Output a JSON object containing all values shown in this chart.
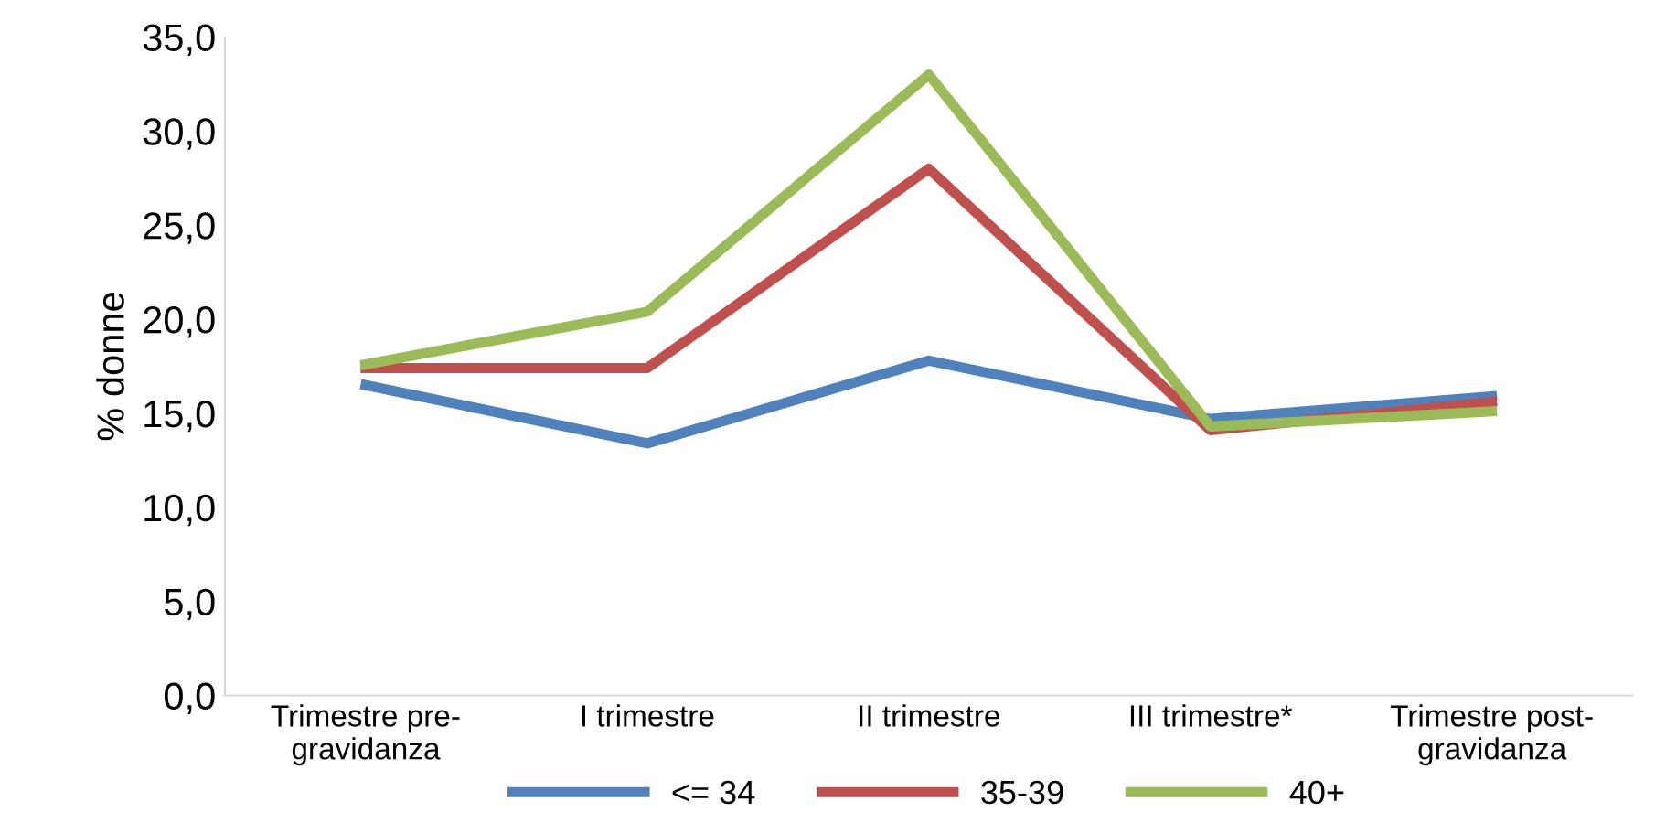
{
  "chart_data": {
    "type": "line",
    "ylabel": "% donne",
    "categories": [
      "Trimestre pre-\ngravidanza",
      "I trimestre",
      "II trimestre",
      "III trimestre*",
      "Trimestre post-\ngravidanza"
    ],
    "series": [
      {
        "name": "<= 34",
        "color": "#4f81bd",
        "values": [
          16.5,
          13.4,
          17.8,
          14.7,
          15.9
        ]
      },
      {
        "name": "35-39",
        "color": "#c0504d",
        "values": [
          17.4,
          17.4,
          28.0,
          14.1,
          15.6
        ]
      },
      {
        "name": "40+",
        "color": "#9bbb59",
        "values": [
          17.6,
          20.4,
          33.0,
          14.3,
          15.1
        ]
      }
    ],
    "ylim": [
      0,
      35
    ],
    "yticks": [
      {
        "value": 0,
        "label": "0,0"
      },
      {
        "value": 5,
        "label": "5,0"
      },
      {
        "value": 10,
        "label": "10,0"
      },
      {
        "value": 15,
        "label": "15,0"
      },
      {
        "value": 20,
        "label": "20,0"
      },
      {
        "value": 25,
        "label": "25,0"
      },
      {
        "value": 30,
        "label": "30,0"
      },
      {
        "value": 35,
        "label": "35,0"
      }
    ],
    "legend": "bottom",
    "grid": false,
    "marker": "none",
    "line_style": "solid"
  }
}
